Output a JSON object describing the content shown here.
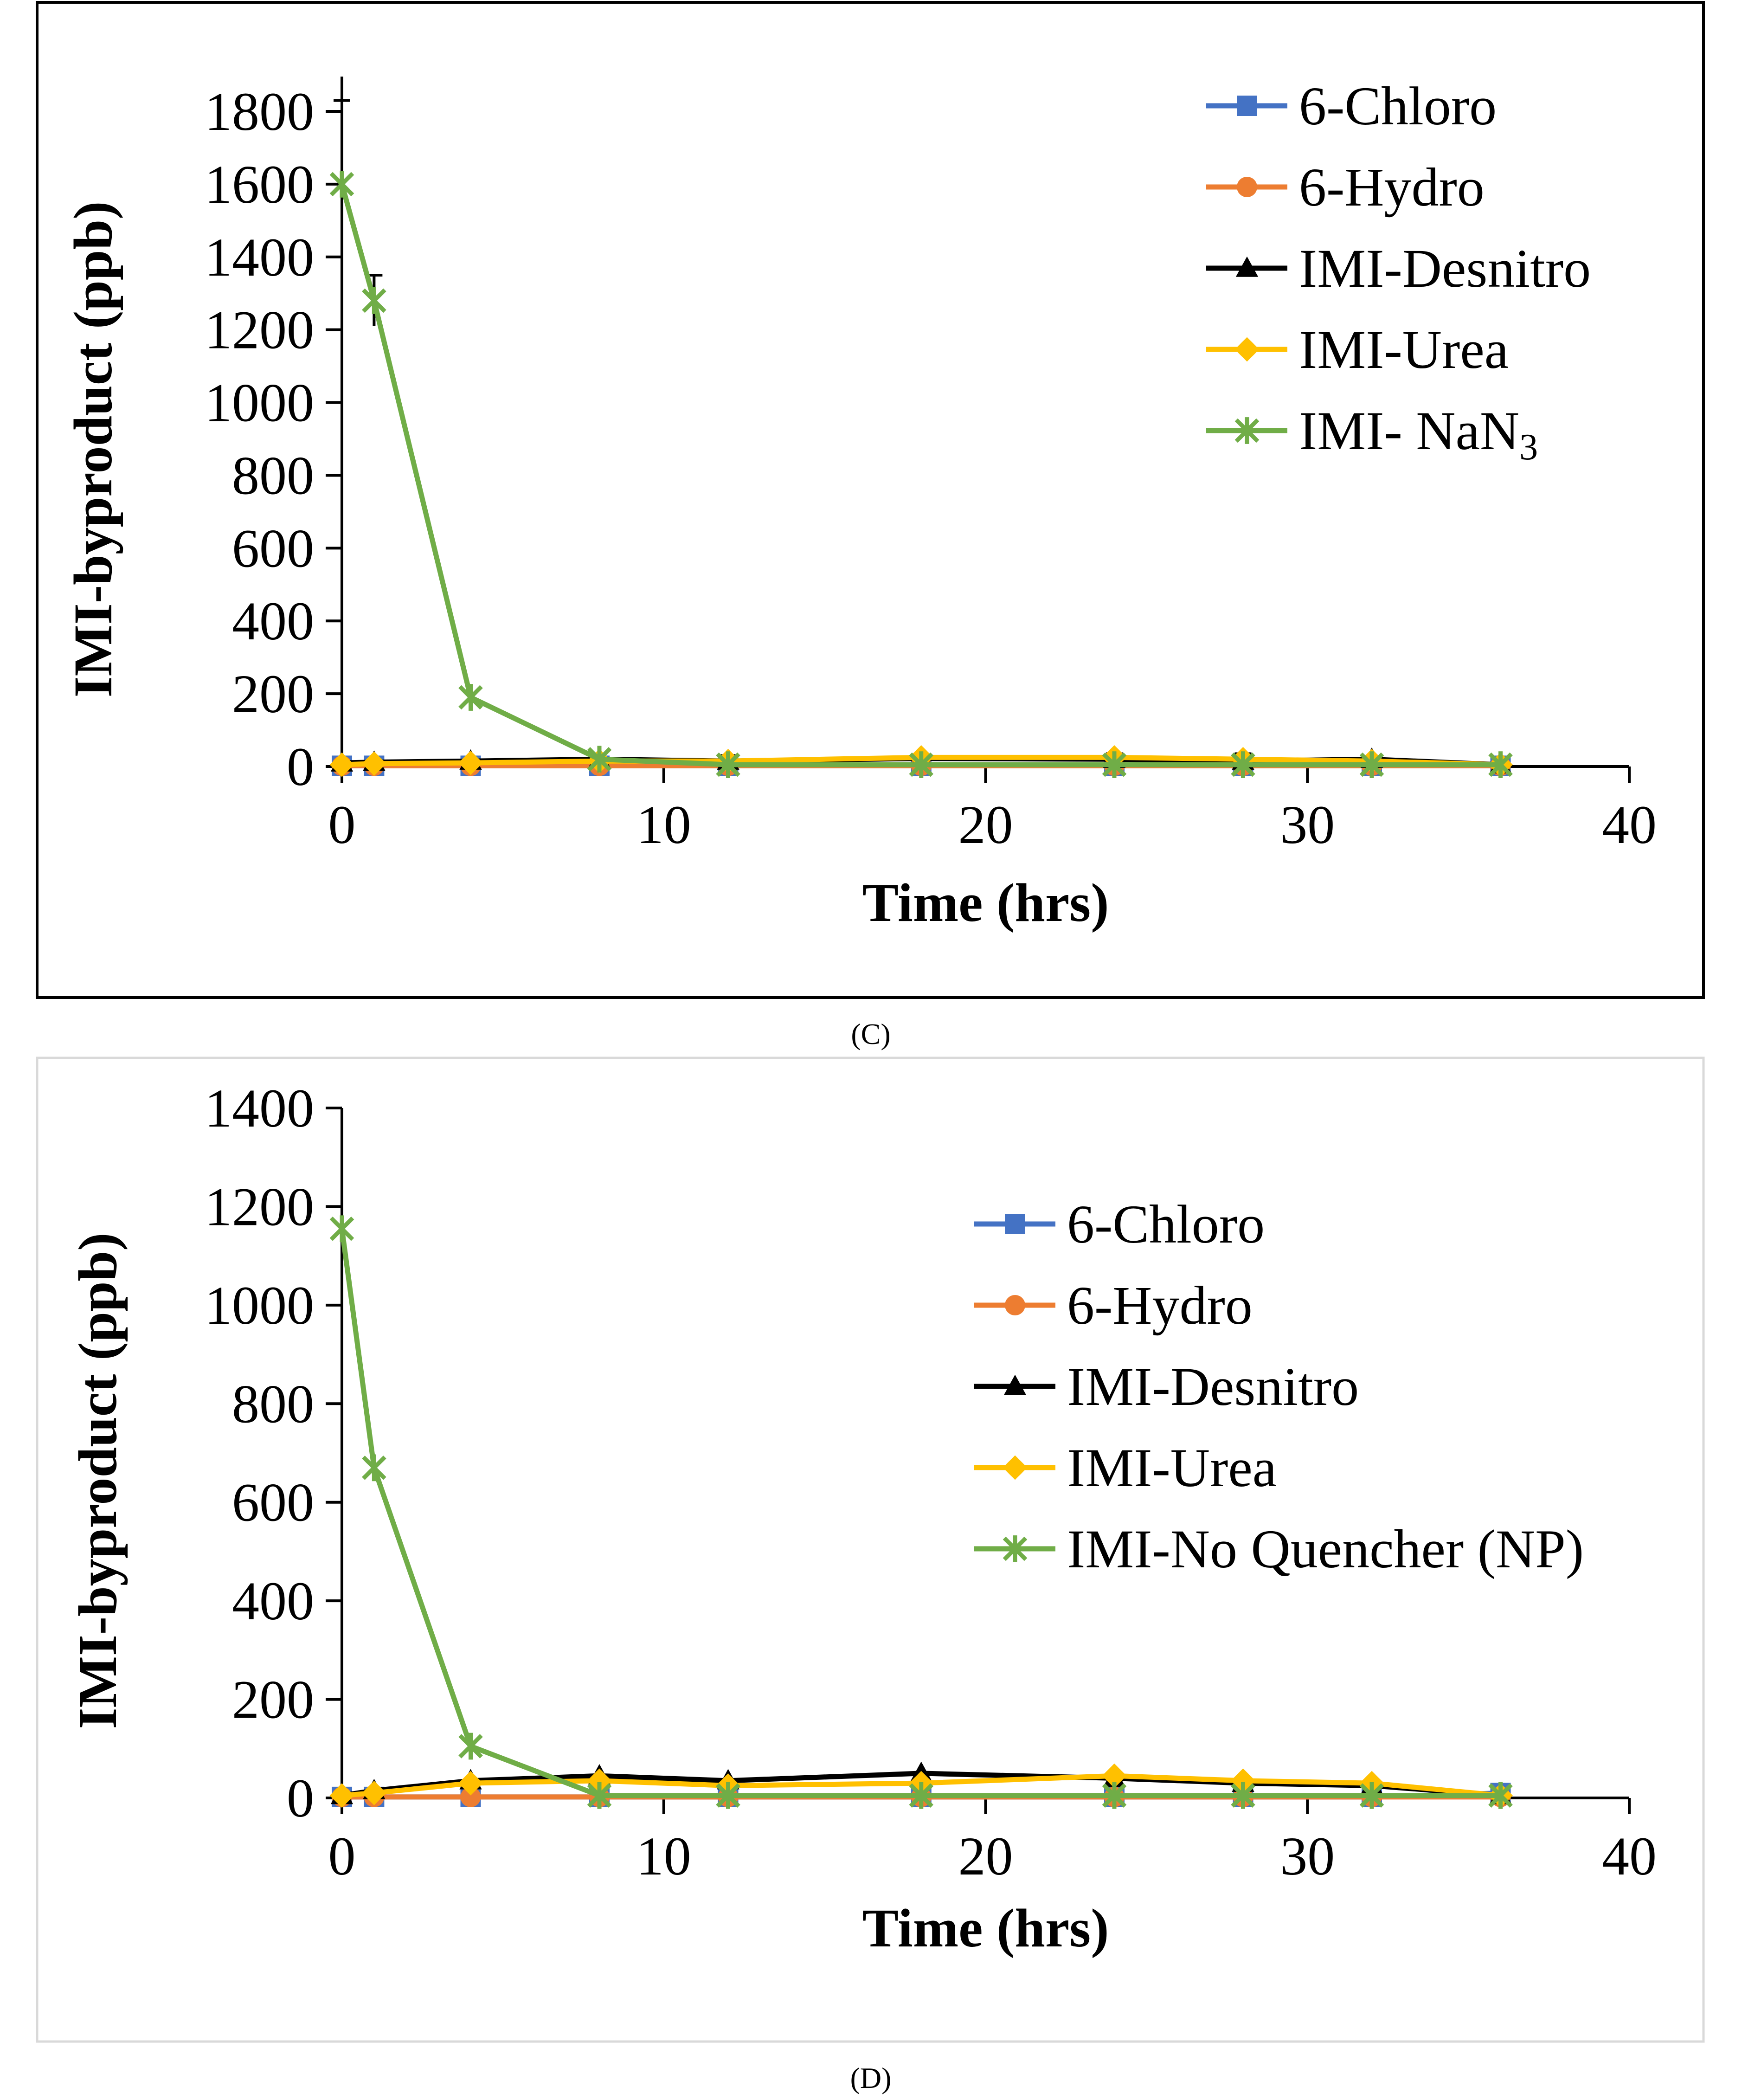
{
  "chart_data": [
    {
      "type": "line",
      "panel_label": "(C)",
      "xlabel": "Time (hrs)",
      "ylabel": "IMI-byproduct (ppb)",
      "xlim": [
        0,
        40
      ],
      "ylim": [
        0,
        1800
      ],
      "xticks": [
        0,
        10,
        20,
        30,
        40
      ],
      "yticks": [
        0,
        200,
        400,
        600,
        800,
        1000,
        1200,
        1400,
        1600,
        1800
      ],
      "legend_position": "top-right",
      "x": [
        0,
        1,
        4,
        8,
        12,
        18,
        24,
        28,
        32,
        36
      ],
      "series": [
        {
          "name": "6-Chloro",
          "values": [
            2,
            2,
            2,
            2,
            2,
            2,
            2,
            2,
            2,
            2
          ],
          "color": "#4472C4",
          "marker": "square"
        },
        {
          "name": "6-Hydro",
          "values": [
            2,
            2,
            2,
            2,
            2,
            2,
            2,
            2,
            2,
            2
          ],
          "color": "#ED7D31",
          "marker": "circle"
        },
        {
          "name": "IMI-Desnitro",
          "values": [
            10,
            12,
            15,
            20,
            15,
            22,
            20,
            15,
            20,
            5
          ],
          "color": "#000000",
          "marker": "triangle"
        },
        {
          "name": "IMI-Urea",
          "values": [
            5,
            8,
            10,
            15,
            15,
            25,
            25,
            20,
            15,
            5
          ],
          "color": "#FFC000",
          "marker": "diamond"
        },
        {
          "name": "IMI- NaN3",
          "name_main": "IMI- NaN",
          "name_sub": "3",
          "values": [
            1600,
            1280,
            190,
            20,
            5,
            5,
            5,
            5,
            5,
            5
          ],
          "color": "#70AD47",
          "marker": "star"
        }
      ],
      "error_bars": [
        {
          "series": "IMI- NaN3",
          "x": 0,
          "minus": 230,
          "plus": 230
        },
        {
          "series": "IMI- NaN3",
          "x": 1,
          "minus": 70,
          "plus": 70
        },
        {
          "series": "IMI-Desnitro",
          "x": 12,
          "minus": 15,
          "plus": 15
        },
        {
          "series": "IMI-Desnitro",
          "x": 24,
          "minus": 15,
          "plus": 15
        },
        {
          "series": "IMI-Desnitro",
          "x": 28,
          "minus": 20,
          "plus": 20
        }
      ]
    },
    {
      "type": "line",
      "panel_label": "(D)",
      "xlabel": "Time (hrs)",
      "ylabel": "IMI-byproduct (ppb)",
      "xlim": [
        0,
        40
      ],
      "ylim": [
        0,
        1400
      ],
      "xticks": [
        0,
        10,
        20,
        30,
        40
      ],
      "yticks": [
        0,
        200,
        400,
        600,
        800,
        1000,
        1200,
        1400
      ],
      "legend_position": "top-right",
      "x": [
        0,
        1,
        4,
        8,
        12,
        18,
        24,
        28,
        32,
        36
      ],
      "series": [
        {
          "name": "6-Chloro",
          "values": [
            2,
            2,
            2,
            2,
            2,
            2,
            2,
            2,
            2,
            10
          ],
          "color": "#4472C4",
          "marker": "square"
        },
        {
          "name": "6-Hydro",
          "values": [
            2,
            2,
            2,
            2,
            2,
            2,
            2,
            2,
            2,
            2
          ],
          "color": "#ED7D31",
          "marker": "circle"
        },
        {
          "name": "IMI-Desnitro",
          "values": [
            5,
            15,
            35,
            45,
            35,
            50,
            40,
            30,
            25,
            5
          ],
          "color": "#000000",
          "marker": "triangle"
        },
        {
          "name": "IMI-Urea",
          "values": [
            5,
            10,
            30,
            35,
            25,
            30,
            45,
            35,
            30,
            5
          ],
          "color": "#FFC000",
          "marker": "diamond"
        },
        {
          "name": "IMI-No Quencher (NP)",
          "values": [
            1155,
            670,
            105,
            5,
            5,
            5,
            5,
            5,
            5,
            5
          ],
          "color": "#70AD47",
          "marker": "star"
        }
      ],
      "error_bars": []
    }
  ]
}
